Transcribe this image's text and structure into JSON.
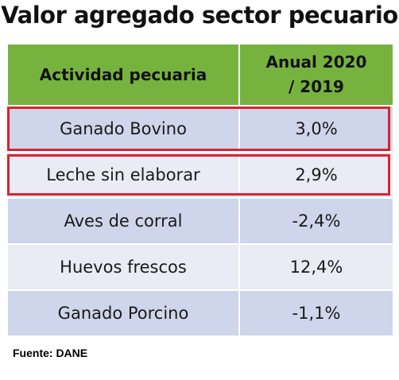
{
  "chart_data": {
    "type": "table",
    "title": "Valor agregado sector pecuario",
    "columns": [
      "Actividad pecuaria",
      "Anual 2020 / 2019"
    ],
    "rows": [
      {
        "activity": "Ganado Bovino",
        "value": "3,0%",
        "highlighted": true
      },
      {
        "activity": "Leche sin elaborar",
        "value": "2,9%",
        "highlighted": true
      },
      {
        "activity": "Aves de corral",
        "value": "-2,4%",
        "highlighted": false
      },
      {
        "activity": "Huevos frescos",
        "value": "12,4%",
        "highlighted": false
      },
      {
        "activity": "Ganado Porcino",
        "value": "-1,1%",
        "highlighted": false
      }
    ],
    "values": [
      3.0,
      2.9,
      -2.4,
      12.4,
      -1.1
    ],
    "source": "Fuente: DANE"
  },
  "colors": {
    "header": "#76b33e",
    "row_dark": "#cfd5ea",
    "row_light": "#e9ebf5",
    "highlight_border": "#d9242f"
  }
}
